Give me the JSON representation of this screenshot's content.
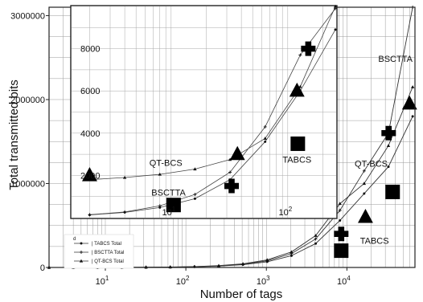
{
  "chart_data": [
    {
      "id": "main",
      "type": "line",
      "x_scale": "log",
      "xlabel": "Number of tags",
      "ylabel": "Total transmitted bits",
      "xlim": [
        2,
        70000
      ],
      "ylim": [
        0,
        3100000
      ],
      "x_ticks": [
        {
          "value": 10,
          "base": "10",
          "exp": "1"
        },
        {
          "value": 100,
          "base": "10",
          "exp": "2"
        },
        {
          "value": 1000,
          "base": "10",
          "exp": "3"
        },
        {
          "value": 10000,
          "base": "10",
          "exp": "4"
        }
      ],
      "y_ticks": [
        {
          "value": 0,
          "label": "0"
        },
        {
          "value": 1000000,
          "label": "1000000"
        },
        {
          "value": 2000000,
          "label": "2000000"
        },
        {
          "value": 3000000,
          "label": "3000000"
        }
      ],
      "grid": true,
      "legend_position": "bottom-left",
      "series": [
        {
          "name": "TABCS Total",
          "marker": "circle",
          "x": [
            2,
            4,
            8,
            16,
            32,
            64,
            128,
            256,
            512,
            1024,
            2048,
            4096,
            8192,
            16384,
            32768,
            65536
          ],
          "y": [
            100,
            200,
            450,
            900,
            1850,
            3800,
            7800,
            16000,
            33000,
            68000,
            140000,
            285000,
            560000,
            880000,
            1200000,
            1800000
          ]
        },
        {
          "name": "BSCTTA Total",
          "marker": "plus",
          "x": [
            2,
            4,
            8,
            16,
            32,
            64,
            128,
            256,
            512,
            1024,
            2048,
            4096,
            8192,
            16384,
            32768,
            65536
          ],
          "y": [
            120,
            240,
            520,
            1050,
            2150,
            4400,
            9000,
            18500,
            38000,
            80000,
            165000,
            340000,
            680000,
            1150000,
            1600000,
            3100000
          ]
        },
        {
          "name": "QT-BCS Total",
          "marker": "triangle",
          "x": [
            2,
            4,
            8,
            16,
            32,
            64,
            128,
            256,
            512,
            1024,
            2048,
            4096,
            8192,
            16384,
            32768,
            65536
          ],
          "y": [
            150,
            300,
            600,
            1250,
            2500,
            5100,
            10500,
            21500,
            44000,
            90000,
            185000,
            380000,
            760000,
            1000000,
            1450000,
            2150000
          ]
        }
      ],
      "annotations": [
        {
          "text": "BSCTTA",
          "x": 40000,
          "y": 2450000
        },
        {
          "text": "QT-BCS",
          "x": 20000,
          "y": 1200000
        },
        {
          "text": "TABCS",
          "x": 22000,
          "y": 280000
        }
      ],
      "big_markers": [
        {
          "series": "BSCTTA Total",
          "marker": "plus",
          "x": 8500,
          "y": 400000
        },
        {
          "series": "BSCTTA Total",
          "marker": "plus",
          "x": 33000,
          "y": 1600000
        },
        {
          "series": "QT-BCS Total",
          "marker": "triangle",
          "x": 17000,
          "y": 600000
        },
        {
          "series": "QT-BCS Total",
          "marker": "triangle",
          "x": 60000,
          "y": 1950000
        },
        {
          "series": "TABCS Total",
          "marker": "square",
          "x": 8500,
          "y": 200000
        },
        {
          "series": "TABCS Total",
          "marker": "square",
          "x": 37000,
          "y": 900000
        }
      ]
    },
    {
      "id": "inset",
      "type": "line",
      "x_scale": "log",
      "xlim": [
        1.4,
        260
      ],
      "ylim": [
        0,
        10000
      ],
      "x_ticks": [
        {
          "value": 10,
          "base": "10",
          "exp": "1"
        },
        {
          "value": 100,
          "base": "10",
          "exp": "2"
        }
      ],
      "y_ticks": [
        {
          "value": 2000,
          "label": "2000"
        },
        {
          "value": 4000,
          "label": "4000"
        },
        {
          "value": 6000,
          "label": "6000"
        },
        {
          "value": 8000,
          "label": "8000"
        }
      ],
      "grid": true,
      "series": [
        {
          "name": "TABCS",
          "marker": "circle",
          "x": [
            2,
            4,
            8,
            16,
            32,
            64,
            128,
            256
          ],
          "y": [
            130,
            250,
            480,
            900,
            1800,
            3600,
            6000,
            8900
          ]
        },
        {
          "name": "BSCTTA",
          "marker": "plus",
          "x": [
            2,
            4,
            8,
            16,
            32,
            64,
            128,
            256
          ],
          "y": [
            140,
            270,
            560,
            1100,
            2150,
            4300,
            7700,
            9900
          ]
        },
        {
          "name": "QT-BCS",
          "marker": "triangle",
          "x": [
            2,
            4,
            8,
            16,
            32,
            64,
            128,
            256
          ],
          "y": [
            1800,
            1900,
            2050,
            2300,
            2750,
            3750,
            6200,
            10000
          ]
        }
      ],
      "annotations": [
        {
          "text": "QT-BCS",
          "x": 9,
          "y": 2450
        },
        {
          "text": "BSCTTA",
          "x": 9.5,
          "y": 1050
        },
        {
          "text": "TABCS",
          "x": 120,
          "y": 2600
        }
      ],
      "big_markers": [
        {
          "series": "QT-BCS",
          "marker": "triangle",
          "x": 2,
          "y": 2000
        },
        {
          "series": "QT-BCS",
          "marker": "triangle",
          "x": 37,
          "y": 3000
        },
        {
          "series": "QT-BCS",
          "marker": "triangle",
          "x": 120,
          "y": 6000
        },
        {
          "series": "BSCTTA",
          "marker": "plus",
          "x": 33,
          "y": 1500
        },
        {
          "series": "BSCTTA",
          "marker": "plus",
          "x": 150,
          "y": 8000
        },
        {
          "series": "TABCS",
          "marker": "square",
          "x": 10.5,
          "y": 600
        },
        {
          "series": "TABCS",
          "marker": "square",
          "x": 122,
          "y": 3500
        }
      ]
    }
  ],
  "legend": {
    "symbol": "d",
    "entries": [
      "| TABCS Total",
      "| BSCTTA Total",
      "| QT-BCS Total"
    ]
  }
}
